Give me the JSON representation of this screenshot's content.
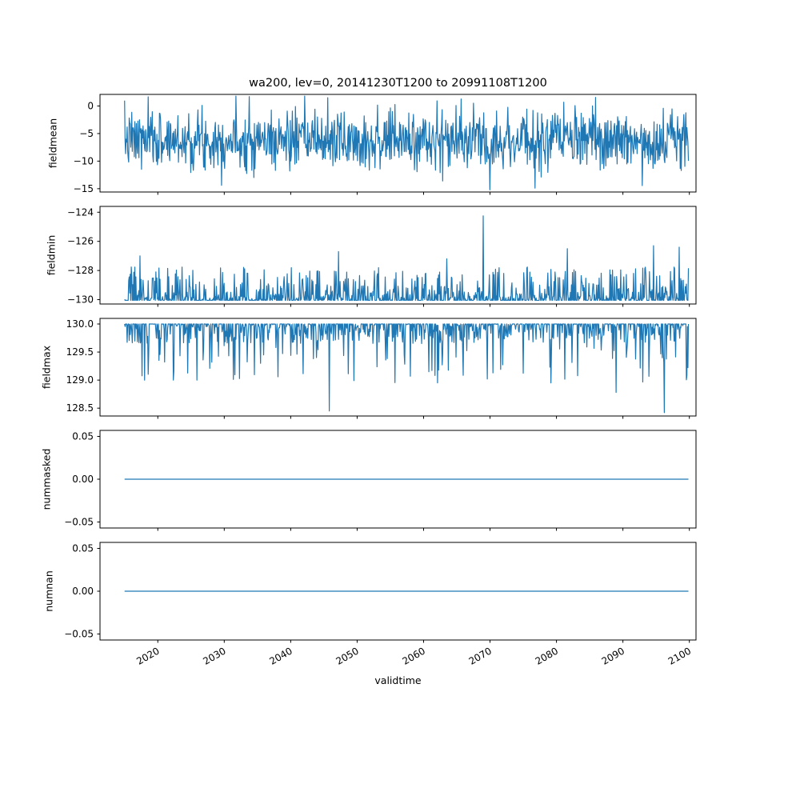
{
  "figure": {
    "title": "wa200, lev=0, 20141230T1200 to 20991108T1200",
    "xlabel": "validtime",
    "line_color": "#1f77b4",
    "background": "#ffffff",
    "xlim": [
      2011.3,
      2101.0
    ],
    "data_x_range": [
      2015.0,
      2099.86
    ],
    "xticks": {
      "values": [
        2020,
        2030,
        2040,
        2050,
        2060,
        2070,
        2080,
        2090,
        2100
      ],
      "labels": [
        "2020",
        "2030",
        "2040",
        "2050",
        "2060",
        "2070",
        "2080",
        "2090",
        "2100"
      ],
      "rotation": -30
    }
  },
  "seed": 7,
  "chart_data": [
    {
      "type": "line",
      "name": "fieldmean",
      "ylabel": "fieldmean",
      "ylim": [
        -15.6,
        2.1
      ],
      "yticks": {
        "values": [
          0,
          -5,
          -10,
          -15
        ],
        "labels": [
          "0",
          "−5",
          "−10",
          "−15"
        ]
      },
      "series": [
        {
          "name": "fieldmean",
          "model": {
            "kind": "gaussian",
            "mean": -6.2,
            "std": 2.6,
            "clip_min": -15.2,
            "clip_max": 1.8,
            "points": 1100
          },
          "spikes": [
            {
              "x": 2033.8,
              "v": 1.7
            },
            {
              "x": 2045.6,
              "v": 1.5
            },
            {
              "x": 2062.9,
              "v": -13.6
            },
            {
              "x": 2076.8,
              "v": -14.9
            }
          ]
        }
      ]
    },
    {
      "type": "line",
      "name": "fieldmin",
      "ylabel": "fieldmin",
      "ylim": [
        -130.3,
        -123.6
      ],
      "yticks": {
        "values": [
          -124,
          -126,
          -128,
          -130
        ],
        "labels": [
          "−124",
          "−126",
          "−128",
          "−130"
        ]
      },
      "series": [
        {
          "name": "fieldmin",
          "model": {
            "kind": "floor",
            "floor": -130.05,
            "flat_frac": 0.35,
            "pow": 2.5,
            "scale": 2.3,
            "points": 1100
          },
          "spikes": [
            {
              "x": 2069.0,
              "v": -124.25
            },
            {
              "x": 2017.3,
              "v": -127.0
            },
            {
              "x": 2047.2,
              "v": -126.7
            },
            {
              "x": 2063.5,
              "v": -127.2
            },
            {
              "x": 2081.6,
              "v": -126.5
            },
            {
              "x": 2094.6,
              "v": -126.3
            },
            {
              "x": 2098.5,
              "v": -126.4
            }
          ]
        }
      ]
    },
    {
      "type": "line",
      "name": "fieldmax",
      "ylabel": "fieldmax",
      "ylim": [
        128.36,
        130.1
      ],
      "yticks": {
        "values": [
          130.0,
          129.5,
          129.0,
          128.5
        ],
        "labels": [
          "130.0",
          "129.5",
          "129.0",
          "128.5"
        ]
      },
      "series": [
        {
          "name": "fieldmax",
          "model": {
            "kind": "ceiling",
            "ceiling": 130.0,
            "flat_frac": 0.45,
            "small_frac": 0.47,
            "small_scale": 0.35,
            "big_base": 0.3,
            "big_scale": 0.75,
            "points": 1100
          },
          "spikes": [
            {
              "x": 2045.8,
              "v": 128.45
            },
            {
              "x": 2096.2,
              "v": 128.42
            },
            {
              "x": 2079.2,
              "v": 128.95
            },
            {
              "x": 2089.0,
              "v": 128.78
            },
            {
              "x": 2069.6,
              "v": 129.02
            },
            {
              "x": 2022.3,
              "v": 129.0
            },
            {
              "x": 2060.8,
              "v": 129.15
            },
            {
              "x": 2035.5,
              "v": 129.3
            }
          ]
        }
      ]
    },
    {
      "type": "line",
      "name": "nummasked",
      "ylabel": "nummasked",
      "ylim": [
        -0.057,
        0.057
      ],
      "yticks": {
        "values": [
          0.05,
          0.0,
          -0.05
        ],
        "labels": [
          "0.05",
          "0.00",
          "−0.05"
        ]
      },
      "series": [
        {
          "name": "nummasked",
          "model": {
            "kind": "constant",
            "value": 0.0,
            "points": 2
          },
          "spikes": []
        }
      ]
    },
    {
      "type": "line",
      "name": "numnan",
      "ylabel": "numnan",
      "ylim": [
        -0.057,
        0.057
      ],
      "yticks": {
        "values": [
          0.05,
          0.0,
          -0.05
        ],
        "labels": [
          "0.05",
          "0.00",
          "−0.05"
        ]
      },
      "series": [
        {
          "name": "numnan",
          "model": {
            "kind": "constant",
            "value": 0.0,
            "points": 2
          },
          "spikes": []
        }
      ]
    }
  ]
}
